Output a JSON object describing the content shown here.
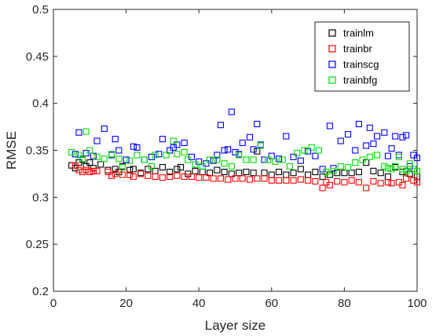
{
  "chart_data": {
    "type": "scatter",
    "title": "",
    "xlabel": "Layer size",
    "ylabel": "RMSE",
    "xlim": [
      0,
      100
    ],
    "ylim": [
      0.2,
      0.5
    ],
    "xticks": [
      0,
      20,
      40,
      60,
      80,
      100
    ],
    "yticks": [
      0.2,
      0.25,
      0.3,
      0.35,
      0.4,
      0.45,
      0.5
    ],
    "ytick_labels": [
      "0.2",
      "0.25",
      "0.3",
      "0.35",
      "0.4",
      "0.45",
      "0.5"
    ],
    "grid": false,
    "box": true,
    "legend_position": "top-right",
    "marker": "open-square",
    "series": [
      {
        "name": "trainlm",
        "color": "#000000",
        "points": [
          [
            5,
            0.334
          ],
          [
            6,
            0.331
          ],
          [
            7,
            0.337
          ],
          [
            8,
            0.34
          ],
          [
            9,
            0.333
          ],
          [
            10,
            0.337
          ],
          [
            11,
            0.331
          ],
          [
            13,
            0.335
          ],
          [
            15,
            0.329
          ],
          [
            17,
            0.33
          ],
          [
            18,
            0.327
          ],
          [
            19,
            0.333
          ],
          [
            21,
            0.329
          ],
          [
            22,
            0.33
          ],
          [
            24,
            0.326
          ],
          [
            26,
            0.33
          ],
          [
            28,
            0.328
          ],
          [
            30,
            0.332
          ],
          [
            32,
            0.327
          ],
          [
            34,
            0.33
          ],
          [
            35,
            0.332
          ],
          [
            37,
            0.325
          ],
          [
            39,
            0.328
          ],
          [
            41,
            0.327
          ],
          [
            43,
            0.326
          ],
          [
            45,
            0.329
          ],
          [
            47,
            0.327
          ],
          [
            49,
            0.325
          ],
          [
            51,
            0.326
          ],
          [
            53,
            0.327
          ],
          [
            55,
            0.326
          ],
          [
            56,
            0.349
          ],
          [
            58,
            0.326
          ],
          [
            60,
            0.324
          ],
          [
            62,
            0.327
          ],
          [
            64,
            0.324
          ],
          [
            66,
            0.326
          ],
          [
            68,
            0.33
          ],
          [
            70,
            0.324
          ],
          [
            72,
            0.327
          ],
          [
            74,
            0.322
          ],
          [
            76,
            0.324
          ],
          [
            78,
            0.326
          ],
          [
            80,
            0.326
          ],
          [
            82,
            0.326
          ],
          [
            84,
            0.327
          ],
          [
            86,
            0.337
          ],
          [
            88,
            0.328
          ],
          [
            90,
            0.326
          ],
          [
            92,
            0.322
          ],
          [
            94,
            0.332
          ],
          [
            96,
            0.327
          ],
          [
            98,
            0.325
          ],
          [
            100,
            0.322
          ]
        ]
      },
      {
        "name": "trainbr",
        "color": "#ff0000",
        "points": [
          [
            6,
            0.334
          ],
          [
            7,
            0.329
          ],
          [
            8,
            0.327
          ],
          [
            9,
            0.329
          ],
          [
            10,
            0.327
          ],
          [
            11,
            0.328
          ],
          [
            12,
            0.328
          ],
          [
            15,
            0.327
          ],
          [
            16,
            0.323
          ],
          [
            17,
            0.325
          ],
          [
            19,
            0.324
          ],
          [
            21,
            0.324
          ],
          [
            22,
            0.322
          ],
          [
            24,
            0.325
          ],
          [
            26,
            0.323
          ],
          [
            28,
            0.322
          ],
          [
            30,
            0.321
          ],
          [
            32,
            0.322
          ],
          [
            34,
            0.323
          ],
          [
            36,
            0.322
          ],
          [
            38,
            0.322
          ],
          [
            40,
            0.321
          ],
          [
            42,
            0.321
          ],
          [
            44,
            0.32
          ],
          [
            46,
            0.32
          ],
          [
            48,
            0.319
          ],
          [
            50,
            0.32
          ],
          [
            52,
            0.32
          ],
          [
            54,
            0.319
          ],
          [
            56,
            0.32
          ],
          [
            58,
            0.32
          ],
          [
            60,
            0.318
          ],
          [
            62,
            0.318
          ],
          [
            64,
            0.318
          ],
          [
            66,
            0.318
          ],
          [
            68,
            0.319
          ],
          [
            70,
            0.318
          ],
          [
            72,
            0.317
          ],
          [
            74,
            0.31
          ],
          [
            75,
            0.316
          ],
          [
            76,
            0.313
          ],
          [
            78,
            0.317
          ],
          [
            80,
            0.316
          ],
          [
            82,
            0.318
          ],
          [
            84,
            0.316
          ],
          [
            86,
            0.31
          ],
          [
            88,
            0.317
          ],
          [
            90,
            0.315
          ],
          [
            92,
            0.316
          ],
          [
            93,
            0.315
          ],
          [
            95,
            0.316
          ],
          [
            96,
            0.313
          ],
          [
            97,
            0.32
          ],
          [
            99,
            0.318
          ],
          [
            100,
            0.316
          ]
        ]
      },
      {
        "name": "trainscg",
        "color": "#0000ff",
        "points": [
          [
            6,
            0.346
          ],
          [
            7,
            0.369
          ],
          [
            9,
            0.347
          ],
          [
            11,
            0.344
          ],
          [
            12,
            0.36
          ],
          [
            14,
            0.373
          ],
          [
            16,
            0.345
          ],
          [
            17,
            0.362
          ],
          [
            18,
            0.35
          ],
          [
            20,
            0.34
          ],
          [
            22,
            0.354
          ],
          [
            23,
            0.353
          ],
          [
            25,
            0.34
          ],
          [
            27,
            0.343
          ],
          [
            29,
            0.346
          ],
          [
            30,
            0.362
          ],
          [
            32,
            0.35
          ],
          [
            33,
            0.353
          ],
          [
            34,
            0.356
          ],
          [
            36,
            0.358
          ],
          [
            38,
            0.343
          ],
          [
            40,
            0.338
          ],
          [
            42,
            0.336
          ],
          [
            44,
            0.339
          ],
          [
            45,
            0.345
          ],
          [
            46,
            0.377
          ],
          [
            47,
            0.35
          ],
          [
            48,
            0.351
          ],
          [
            49,
            0.391
          ],
          [
            50,
            0.348
          ],
          [
            51,
            0.346
          ],
          [
            52,
            0.358
          ],
          [
            54,
            0.364
          ],
          [
            55,
            0.351
          ],
          [
            56,
            0.378
          ],
          [
            57,
            0.356
          ],
          [
            58,
            0.34
          ],
          [
            60,
            0.344
          ],
          [
            62,
            0.341
          ],
          [
            64,
            0.365
          ],
          [
            66,
            0.343
          ],
          [
            68,
            0.339
          ],
          [
            70,
            0.349
          ],
          [
            72,
            0.344
          ],
          [
            74,
            0.33
          ],
          [
            76,
            0.376
          ],
          [
            77,
            0.331
          ],
          [
            79,
            0.36
          ],
          [
            81,
            0.367
          ],
          [
            83,
            0.35
          ],
          [
            84,
            0.378
          ],
          [
            86,
            0.355
          ],
          [
            87,
            0.374
          ],
          [
            88,
            0.357
          ],
          [
            89,
            0.365
          ],
          [
            91,
            0.369
          ],
          [
            92,
            0.344
          ],
          [
            93,
            0.352
          ],
          [
            94,
            0.365
          ],
          [
            95,
            0.345
          ],
          [
            96,
            0.364
          ],
          [
            97,
            0.366
          ],
          [
            98,
            0.333
          ],
          [
            99,
            0.345
          ],
          [
            100,
            0.342
          ]
        ]
      },
      {
        "name": "trainbfg",
        "color": "#00dd00",
        "points": [
          [
            5,
            0.348
          ],
          [
            7,
            0.345
          ],
          [
            8,
            0.341
          ],
          [
            9,
            0.37
          ],
          [
            10,
            0.35
          ],
          [
            12,
            0.343
          ],
          [
            14,
            0.341
          ],
          [
            16,
            0.346
          ],
          [
            18,
            0.341
          ],
          [
            19,
            0.332
          ],
          [
            21,
            0.339
          ],
          [
            23,
            0.345
          ],
          [
            25,
            0.34
          ],
          [
            27,
            0.333
          ],
          [
            28,
            0.345
          ],
          [
            31,
            0.345
          ],
          [
            33,
            0.36
          ],
          [
            34,
            0.346
          ],
          [
            36,
            0.348
          ],
          [
            37,
            0.34
          ],
          [
            39,
            0.335
          ],
          [
            41,
            0.333
          ],
          [
            43,
            0.34
          ],
          [
            45,
            0.34
          ],
          [
            47,
            0.336
          ],
          [
            49,
            0.333
          ],
          [
            51,
            0.345
          ],
          [
            53,
            0.34
          ],
          [
            55,
            0.34
          ],
          [
            57,
            0.355
          ],
          [
            59,
            0.34
          ],
          [
            61,
            0.338
          ],
          [
            63,
            0.34
          ],
          [
            65,
            0.333
          ],
          [
            67,
            0.347
          ],
          [
            69,
            0.35
          ],
          [
            71,
            0.353
          ],
          [
            73,
            0.35
          ],
          [
            75,
            0.327
          ],
          [
            77,
            0.328
          ],
          [
            79,
            0.333
          ],
          [
            81,
            0.332
          ],
          [
            83,
            0.337
          ],
          [
            85,
            0.34
          ],
          [
            87,
            0.343
          ],
          [
            89,
            0.345
          ],
          [
            91,
            0.333
          ],
          [
            92,
            0.331
          ],
          [
            93,
            0.33
          ],
          [
            94,
            0.333
          ],
          [
            95,
            0.343
          ],
          [
            96,
            0.33
          ],
          [
            97,
            0.328
          ],
          [
            98,
            0.336
          ],
          [
            99,
            0.33
          ],
          [
            100,
            0.328
          ]
        ]
      }
    ]
  }
}
